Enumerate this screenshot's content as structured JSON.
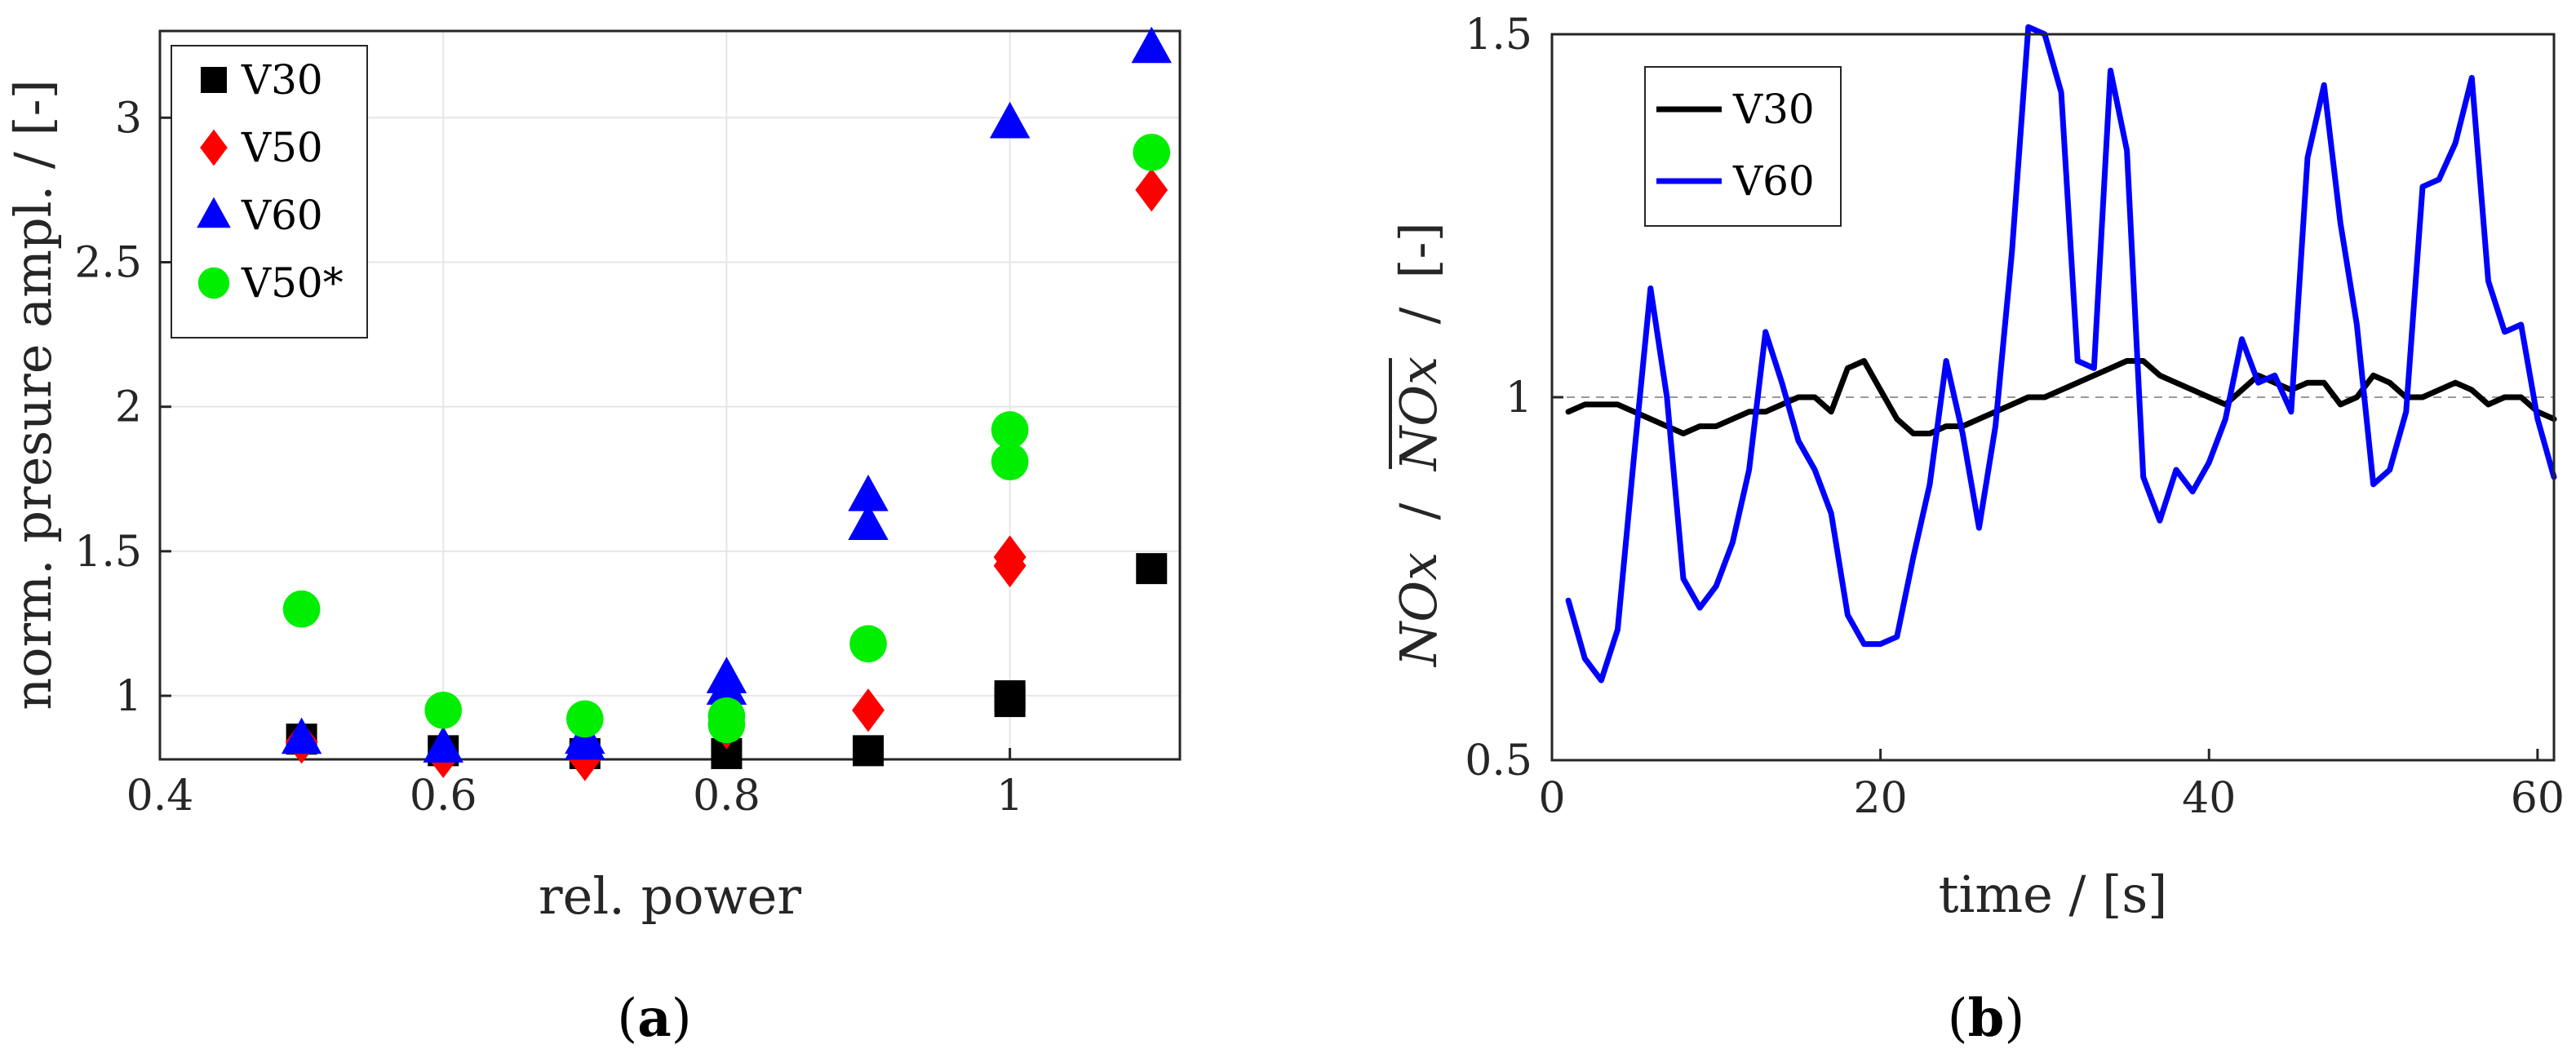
{
  "panels": [
    {
      "letter": "a",
      "open": "(",
      "close": ")"
    },
    {
      "letter": "b",
      "open": "(",
      "close": ")"
    }
  ],
  "chart_data": [
    {
      "type": "scatter",
      "xlabel": "rel. power",
      "ylabel": "norm. presure ampl. / [-]",
      "xlim": [
        0.4,
        1.12
      ],
      "ylim": [
        0.78,
        3.3
      ],
      "xticks": [
        0.4,
        0.6,
        0.8,
        1.0
      ],
      "xtick_labels": [
        "0.4",
        "0.6",
        "0.8",
        "1"
      ],
      "yticks": [
        1,
        1.5,
        2,
        2.5,
        3
      ],
      "ytick_labels": [
        "1",
        "1.5",
        "2",
        "2.5",
        "3"
      ],
      "grid": true,
      "legend_position": "top-left",
      "series": [
        {
          "name": "V30",
          "marker": "square",
          "color": "#000000",
          "points": [
            [
              0.5,
              0.85
            ],
            [
              0.6,
              0.81
            ],
            [
              0.7,
              0.8
            ],
            [
              0.8,
              0.8
            ],
            [
              0.9,
              0.81
            ],
            [
              1.0,
              0.98
            ],
            [
              1.0,
              1.0
            ],
            [
              1.1,
              1.44
            ]
          ]
        },
        {
          "name": "V50",
          "marker": "diamond",
          "color": "#ff0000",
          "points": [
            [
              0.5,
              0.84
            ],
            [
              0.6,
              0.79
            ],
            [
              0.7,
              0.78
            ],
            [
              0.8,
              0.89
            ],
            [
              0.9,
              0.95
            ],
            [
              1.0,
              1.45
            ],
            [
              1.0,
              1.48
            ],
            [
              1.1,
              2.75
            ]
          ]
        },
        {
          "name": "V60",
          "marker": "triangle",
          "color": "#0000ff",
          "points": [
            [
              0.5,
              0.85
            ],
            [
              0.6,
              0.82
            ],
            [
              0.7,
              0.85
            ],
            [
              0.7,
              0.83
            ],
            [
              0.8,
              1.06
            ],
            [
              0.8,
              1.02
            ],
            [
              0.9,
              1.69
            ],
            [
              0.9,
              1.59
            ],
            [
              1.0,
              2.98
            ],
            [
              1.1,
              3.24
            ]
          ]
        },
        {
          "name": "V50*",
          "marker": "circle",
          "color": "#00ee00",
          "points": [
            [
              0.5,
              1.3
            ],
            [
              0.6,
              0.95
            ],
            [
              0.7,
              0.92
            ],
            [
              0.8,
              0.93
            ],
            [
              0.8,
              0.9
            ],
            [
              0.9,
              1.18
            ],
            [
              1.0,
              1.92
            ],
            [
              1.0,
              1.81
            ],
            [
              1.1,
              2.88
            ]
          ]
        }
      ]
    },
    {
      "type": "line",
      "xlabel": "time / [s]",
      "ylabel_text": [
        "NOx",
        "/",
        "NOx",
        "/",
        "[-]"
      ],
      "xlim": [
        0,
        61
      ],
      "ylim": [
        0.5,
        1.5
      ],
      "xticks": [
        0,
        20,
        40,
        60
      ],
      "xtick_labels": [
        "0",
        "20",
        "40",
        "60"
      ],
      "yticks": [
        0.5,
        1,
        1.5
      ],
      "ytick_labels": [
        "0.5",
        "1",
        "1.5"
      ],
      "reference_line": 1,
      "grid": false,
      "legend_position": "top-left",
      "series": [
        {
          "name": "V30",
          "color": "#000000",
          "x": [
            1,
            2,
            3,
            4,
            5,
            6,
            7,
            8,
            9,
            10,
            11,
            12,
            13,
            14,
            15,
            16,
            17,
            18,
            19,
            20,
            21,
            22,
            23,
            24,
            25,
            26,
            27,
            28,
            29,
            30,
            31,
            32,
            33,
            34,
            35,
            36,
            37,
            38,
            39,
            40,
            41,
            42,
            43,
            44,
            45,
            46,
            47,
            48,
            49,
            50,
            51,
            52,
            53,
            54,
            55,
            56,
            57,
            58,
            59,
            60,
            61
          ],
          "y": [
            0.98,
            0.99,
            0.99,
            0.99,
            0.98,
            0.97,
            0.96,
            0.95,
            0.96,
            0.96,
            0.97,
            0.98,
            0.98,
            0.99,
            1.0,
            1.0,
            0.98,
            1.04,
            1.05,
            1.01,
            0.97,
            0.95,
            0.95,
            0.96,
            0.96,
            0.97,
            0.98,
            0.99,
            1.0,
            1.0,
            1.01,
            1.02,
            1.03,
            1.04,
            1.05,
            1.05,
            1.03,
            1.02,
            1.01,
            1.0,
            0.99,
            1.01,
            1.03,
            1.02,
            1.01,
            1.02,
            1.02,
            0.99,
            1.0,
            1.03,
            1.02,
            1.0,
            1.0,
            1.01,
            1.02,
            1.01,
            0.99,
            1.0,
            1.0,
            0.98,
            0.97
          ]
        },
        {
          "name": "V60",
          "color": "#0000ff",
          "x": [
            1,
            2,
            3,
            4,
            5,
            6,
            7,
            8,
            9,
            10,
            11,
            12,
            13,
            14,
            15,
            16,
            17,
            18,
            19,
            20,
            21,
            22,
            23,
            24,
            25,
            26,
            27,
            28,
            29,
            30,
            31,
            32,
            33,
            34,
            35,
            36,
            37,
            38,
            39,
            40,
            41,
            42,
            43,
            44,
            45,
            46,
            47,
            48,
            49,
            50,
            51,
            52,
            53,
            54,
            55,
            56,
            57,
            58,
            59,
            60,
            61
          ],
          "y": [
            0.72,
            0.64,
            0.61,
            0.68,
            0.92,
            1.15,
            1.0,
            0.75,
            0.71,
            0.74,
            0.8,
            0.9,
            1.09,
            1.02,
            0.94,
            0.9,
            0.84,
            0.7,
            0.66,
            0.66,
            0.67,
            0.78,
            0.88,
            1.05,
            0.95,
            0.82,
            0.96,
            1.2,
            1.51,
            1.5,
            1.42,
            1.05,
            1.04,
            1.45,
            1.34,
            0.89,
            0.83,
            0.9,
            0.87,
            0.91,
            0.97,
            1.08,
            1.02,
            1.03,
            0.98,
            1.33,
            1.43,
            1.24,
            1.1,
            0.88,
            0.9,
            0.98,
            1.29,
            1.3,
            1.35,
            1.44,
            1.16,
            1.09,
            1.1,
            0.97,
            0.89
          ]
        }
      ]
    }
  ]
}
